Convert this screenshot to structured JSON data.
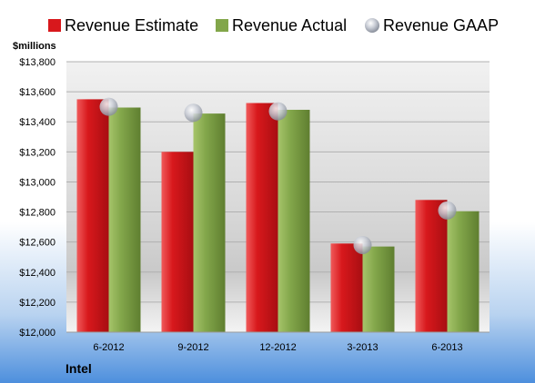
{
  "chart_data": {
    "type": "bar",
    "categories": [
      "6-2012",
      "9-2012",
      "12-2012",
      "3-2013",
      "6-2013"
    ],
    "series": [
      {
        "name": "Revenue Estimate",
        "values": [
          13550,
          13200,
          13525,
          12590,
          12880
        ]
      },
      {
        "name": "Revenue Actual",
        "values": [
          13495,
          13455,
          13480,
          12570,
          12805
        ]
      },
      {
        "name": "Revenue GAAP",
        "values": [
          13500,
          13460,
          13470,
          12580,
          12810
        ]
      }
    ],
    "y_unit_label": "$millions",
    "ylim": [
      12000,
      13800
    ],
    "y_ticks": [
      "$12,000",
      "$12,200",
      "$12,400",
      "$12,600",
      "$12,800",
      "$13,000",
      "$13,200",
      "$13,400",
      "$13,600",
      "$13,800"
    ],
    "legend_position": "top",
    "grid": true,
    "company": "Intel",
    "colors": {
      "estimate": "#d8181c",
      "actual": "#82a64a",
      "gaap": "#b9c0cc",
      "plot_bg": "#e8e8e8",
      "bottom_band": "#4f8fdc"
    }
  }
}
